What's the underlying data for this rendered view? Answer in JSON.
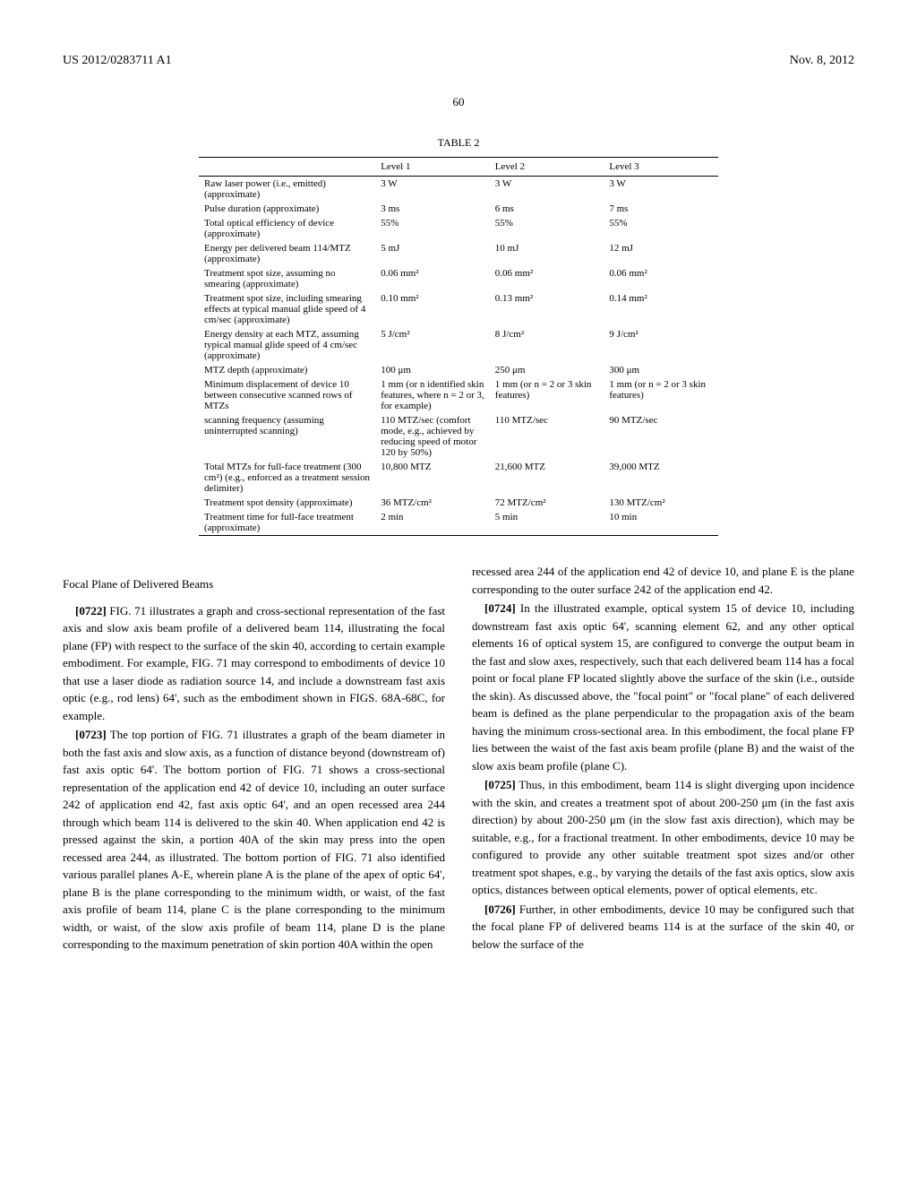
{
  "header": {
    "patent_number": "US 2012/0283711 A1",
    "date": "Nov. 8, 2012"
  },
  "page_number": "60",
  "table": {
    "title": "TABLE 2",
    "headers": [
      "",
      "Level 1",
      "Level 2",
      "Level 3"
    ],
    "rows": [
      [
        "Raw laser power (i.e., emitted) (approximate)",
        "3 W",
        "3 W",
        "3 W"
      ],
      [
        "Pulse duration (approximate)",
        "3 ms",
        "6 ms",
        "7 ms"
      ],
      [
        "Total optical efficiency of device (approximate)",
        "55%",
        "55%",
        "55%"
      ],
      [
        "Energy per delivered beam 114/MTZ (approximate)",
        "5 mJ",
        "10 mJ",
        "12 mJ"
      ],
      [
        "Treatment spot size, assuming no smearing (approximate)",
        "0.06 mm²",
        "0.06 mm²",
        "0.06 mm²"
      ],
      [
        "Treatment spot size, including smearing effects at typical manual glide speed of 4 cm/sec (approximate)",
        "0.10 mm²",
        "0.13 mm²",
        "0.14 mm²"
      ],
      [
        "Energy density at each MTZ, assuming typical manual glide speed of 4 cm/sec (approximate)",
        "5 J/cm²",
        "8 J/cm²",
        "9 J/cm²"
      ],
      [
        "MTZ depth (approximate)",
        "100 μm",
        "250 μm",
        "300 μm"
      ],
      [
        "Minimum displacement of device 10 between consecutive scanned rows of MTZs",
        "1 mm (or n identified skin features, where n = 2 or 3, for example)",
        "1 mm (or n = 2 or 3 skin features)",
        "1 mm (or n = 2 or 3 skin features)"
      ],
      [
        "scanning frequency (assuming uninterrupted scanning)",
        "110 MTZ/sec (comfort mode, e.g., achieved by reducing speed of motor 120 by 50%)",
        "110 MTZ/sec",
        "90 MTZ/sec"
      ],
      [
        "Total MTZs for full-face treatment (300 cm²) (e.g., enforced as a treatment session delimiter)",
        "10,800 MTZ",
        "21,600 MTZ",
        "39,000 MTZ"
      ],
      [
        "Treatment spot density (approximate)",
        "36 MTZ/cm²",
        "72 MTZ/cm²",
        "130 MTZ/cm²"
      ],
      [
        "Treatment time for full-face treatment (approximate)",
        "2 min",
        "5 min",
        "10 min"
      ]
    ]
  },
  "body": {
    "section_heading": "Focal Plane of Delivered Beams",
    "left_column": {
      "p1_num": "[0722]",
      "p1": "FIG. 71 illustrates a graph and cross-sectional representation of the fast axis and slow axis beam profile of a delivered beam 114, illustrating the focal plane (FP) with respect to the surface of the skin 40, according to certain example embodiment. For example, FIG. 71 may correspond to embodiments of device 10 that use a laser diode as radiation source 14, and include a downstream fast axis optic (e.g., rod lens) 64', such as the embodiment shown in FIGS. 68A-68C, for example.",
      "p2_num": "[0723]",
      "p2": "The top portion of FIG. 71 illustrates a graph of the beam diameter in both the fast axis and slow axis, as a function of distance beyond (downstream of) fast axis optic 64'. The bottom portion of FIG. 71 shows a cross-sectional representation of the application end 42 of device 10, including an outer surface 242 of application end 42, fast axis optic 64', and an open recessed area 244 through which beam 114 is delivered to the skin 40. When application end 42 is pressed against the skin, a portion 40A of the skin may press into the open recessed area 244, as illustrated. The bottom portion of FIG. 71 also identified various parallel planes A-E, wherein plane A is the plane of the apex of optic 64', plane B is the plane corresponding to the minimum width, or waist, of the fast axis profile of beam 114, plane C is the plane corresponding to the minimum width, or waist, of the slow axis profile of beam 114, plane D is the plane corresponding to the maximum penetration of skin portion 40A within the open"
    },
    "right_column": {
      "p1": "recessed area 244 of the application end 42 of device 10, and plane E is the plane corresponding to the outer surface 242 of the application end 42.",
      "p2_num": "[0724]",
      "p2": "In the illustrated example, optical system 15 of device 10, including downstream fast axis optic 64', scanning element 62, and any other optical elements 16 of optical system 15, are configured to converge the output beam in the fast and slow axes, respectively, such that each delivered beam 114 has a focal point or focal plane FP located slightly above the surface of the skin (i.e., outside the skin). As discussed above, the \"focal point\" or \"focal plane\" of each delivered beam is defined as the plane perpendicular to the propagation axis of the beam having the minimum cross-sectional area. In this embodiment, the focal plane FP lies between the waist of the fast axis beam profile (plane B) and the waist of the slow axis beam profile (plane C).",
      "p3_num": "[0725]",
      "p3": "Thus, in this embodiment, beam 114 is slight diverging upon incidence with the skin, and creates a treatment spot of about 200-250 μm (in the fast axis direction) by about 200-250 μm (in the slow fast axis direction), which may be suitable, e.g., for a fractional treatment. In other embodiments, device 10 may be configured to provide any other suitable treatment spot sizes and/or other treatment spot shapes, e.g., by varying the details of the fast axis optics, slow axis optics, distances between optical elements, power of optical elements, etc.",
      "p4_num": "[0726]",
      "p4": "Further, in other embodiments, device 10 may be configured such that the focal plane FP of delivered beams 114 is at the surface of the skin 40, or below the surface of the"
    }
  }
}
